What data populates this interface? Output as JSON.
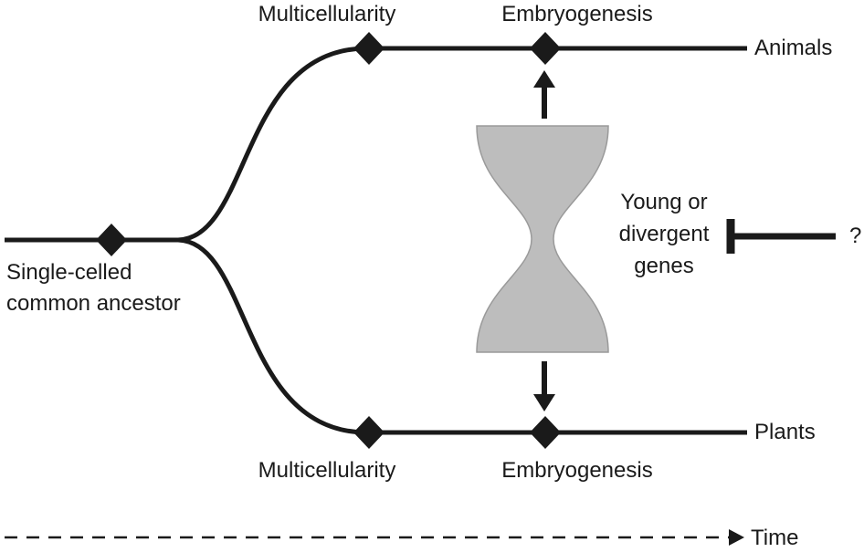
{
  "labels": {
    "ancestor_line1": "Single-celled",
    "ancestor_line2": "common ancestor",
    "multicellularity_top": "Multicellularity",
    "multicellularity_bottom": "Multicellularity",
    "embryogenesis_top": "Embryogenesis",
    "embryogenesis_bottom": "Embryogenesis",
    "animals": "Animals",
    "plants": "Plants",
    "genes_line1": "Young or",
    "genes_line2": "divergent",
    "genes_line3": "genes",
    "question": "?",
    "time": "Time"
  },
  "colors": {
    "line": "#1a1a1a",
    "hourglass_fill": "#bdbdbd",
    "hourglass_stroke": "#9a9a9a"
  }
}
